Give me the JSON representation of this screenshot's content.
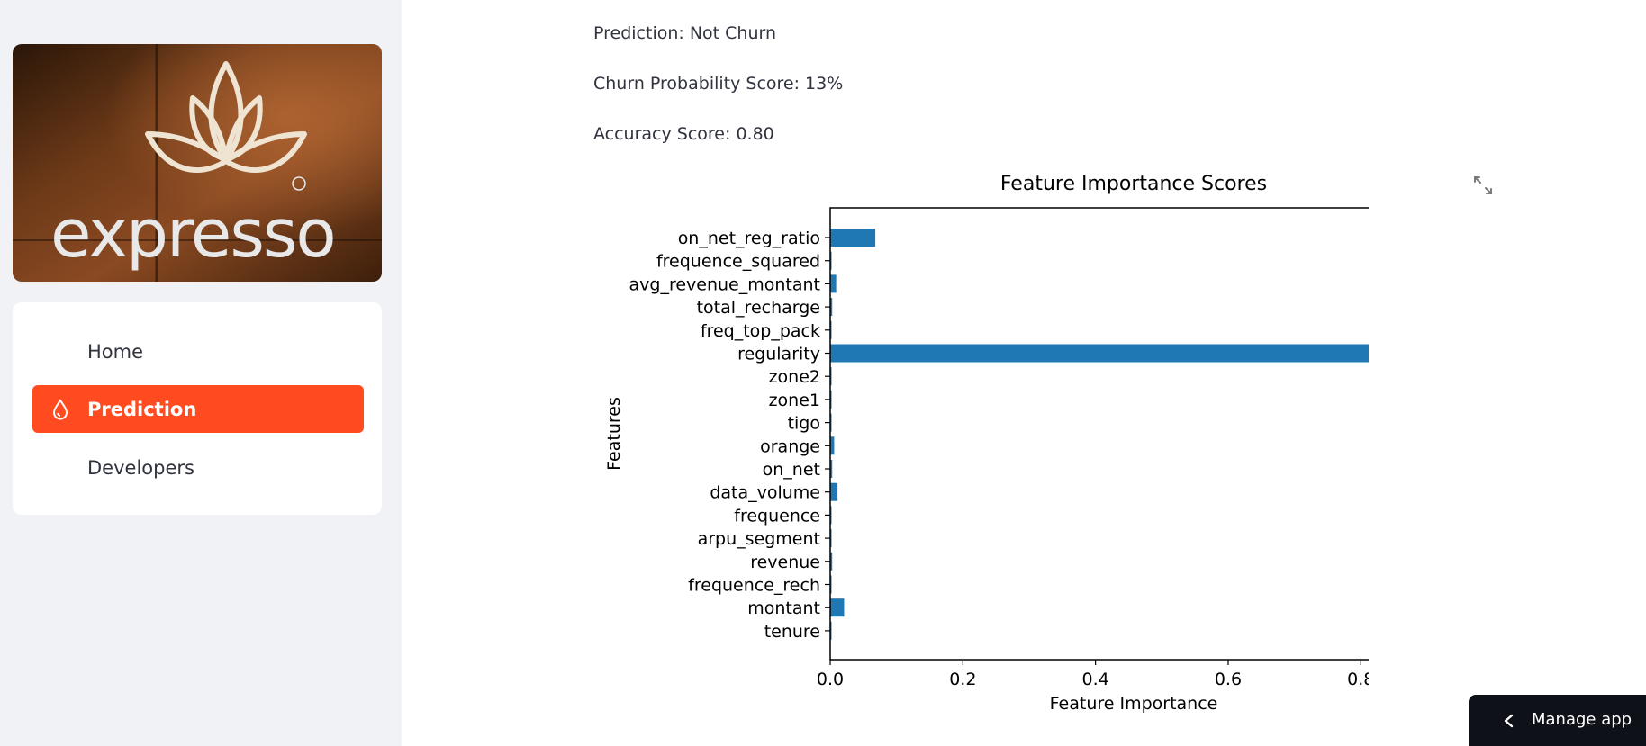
{
  "sidebar": {
    "logo_text": "expresso",
    "nav_items": [
      {
        "label": "Home",
        "active": false
      },
      {
        "label": "Prediction",
        "active": true,
        "icon": "droplet-icon"
      },
      {
        "label": "Developers",
        "active": false
      }
    ]
  },
  "main": {
    "prediction": "Prediction: Not Churn",
    "probability": "Churn Probability Score: 13%",
    "accuracy": "Accuracy Score: 0.80"
  },
  "manage_app": {
    "label": "Manage app"
  },
  "colors": {
    "accent": "#ff4b1f",
    "bar": "#1f77b4",
    "sidebar_bg": "#f0f2f6",
    "manage_bg": "#0e1117"
  },
  "chart_data": {
    "type": "bar",
    "orientation": "horizontal",
    "title": "Feature Importance Scores",
    "xlabel": "Feature Importance",
    "ylabel": "Features",
    "xlim": [
      0,
      0.915
    ],
    "xticks": [
      "0.0",
      "0.2",
      "0.4",
      "0.6",
      "0.8"
    ],
    "xtick_values": [
      0,
      0.2,
      0.4,
      0.6,
      0.8
    ],
    "categories": [
      "on_net_reg_ratio",
      "frequence_squared",
      "avg_revenue_montant",
      "total_recharge",
      "freq_top_pack",
      "regularity",
      "zone2",
      "zone1",
      "tigo",
      "orange",
      "on_net",
      "data_volume",
      "frequence",
      "arpu_segment",
      "revenue",
      "frequence_rech",
      "montant",
      "tenure"
    ],
    "values": [
      0.068,
      0.0005,
      0.009,
      0.003,
      0.0003,
      0.872,
      0.0003,
      0.0003,
      0.0002,
      0.006,
      0.003,
      0.011,
      0.0005,
      0.0005,
      0.003,
      0.0005,
      0.021,
      0.0005
    ],
    "grid": false
  }
}
